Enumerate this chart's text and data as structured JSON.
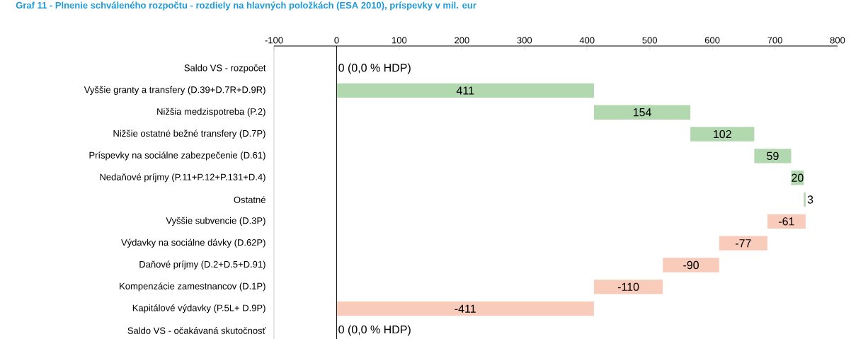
{
  "chart_data": {
    "type": "bar",
    "orientation": "horizontal",
    "title": "Graf 11 - Plnenie schváleného rozpočtu - rozdiely na hlavných položkách (ESA 2010), príspevky v mil. eur",
    "categories": [
      "Saldo VS - rozpočet",
      "Vyššie granty a transfery (D.39+D.7R+D.9R)",
      "Nižšia medzispotreba (P.2)",
      "Nižšie ostatné bežné transfery (D.7P)",
      "Príspevky na sociálne zabezpečenie (D.61)",
      "Nedaňové príjmy (P.11+P.12+P.131+D.4)",
      "Ostatné",
      "Vyššie subvencie (D.3P)",
      "Výdavky na sociálne dávky (D.62P)",
      "Daňové príjmy (D.2+D.5+D.91)",
      "Kompenzácie zamestnancov (D.1P)",
      "Kapitálové výdavky (P.5L+ D.9P)",
      "Saldo VS - očakávaná skutočnosť"
    ],
    "values": [
      0,
      411,
      154,
      102,
      59,
      20,
      3,
      -61,
      -77,
      -90,
      -110,
      -411,
      0
    ],
    "base": [
      null,
      null,
      411,
      565,
      667,
      726,
      746,
      749,
      688,
      611,
      521,
      411,
      null
    ],
    "value_labels": [
      "0 (0,0 % HDP)",
      "411",
      "154",
      "102",
      "59",
      "20",
      "3",
      "-61",
      "-77",
      "-90",
      "-110",
      "-411",
      "0 (0,0 % HDP)"
    ],
    "colors": [
      "#b2d8b0",
      "#b2d8b0",
      "#b2d8b0",
      "#b2d8b0",
      "#b2d8b0",
      "#b2d8b0",
      "#b2d8b0",
      "#f8cbbb",
      "#f8cbbb",
      "#f8cbbb",
      "#f8cbbb",
      "#f8cbbb",
      "#b2d8b0"
    ],
    "xlim": [
      -100,
      800
    ],
    "xticks": [
      -100,
      0,
      100,
      200,
      300,
      400,
      500,
      600,
      700,
      800
    ]
  }
}
